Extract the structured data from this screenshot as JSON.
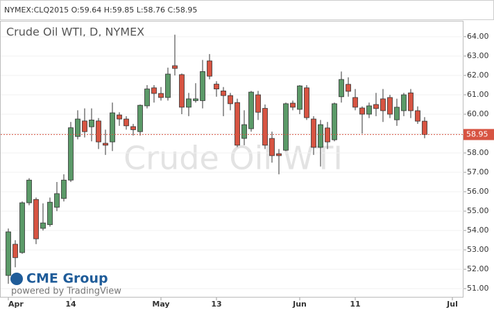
{
  "chart_data": {
    "type": "candlestick",
    "header": "NYMEX:CLQ2015 O:59.64 H:59.85 L:58.76 C:58.95",
    "title": "Crude Oil WTI, D, NYMEX",
    "watermark": "Crude Oil WTI",
    "logo": "CME Group",
    "logo_subtitle": "powered by TradingView",
    "up_color": "#5b9a68",
    "down_color": "#d75442",
    "categories": [
      "Apr",
      null,
      null,
      null,
      null,
      null,
      null,
      null,
      null,
      "14",
      null,
      null,
      null,
      null,
      null,
      null,
      null,
      null,
      null,
      null,
      null,
      null,
      "May",
      null,
      null,
      null,
      null,
      null,
      null,
      null,
      "13",
      null,
      null,
      null,
      null,
      null,
      null,
      null,
      null,
      null,
      null,
      null,
      "Jun",
      null,
      null,
      null,
      null,
      null,
      null,
      null,
      "11",
      null,
      null,
      null,
      null,
      null,
      null,
      null,
      null,
      null,
      null,
      null,
      null,
      null,
      "Jul"
    ],
    "open": [
      51.68,
      53.29,
      52.86,
      55.43,
      55.6,
      54.11,
      54.3,
      55.2,
      55.65,
      56.6,
      58.85,
      59.65,
      59.35,
      59.65,
      58.5,
      58.57,
      59.96,
      59.75,
      59.36,
      59.1,
      60.43,
      61.36,
      61.07,
      60.86,
      62.5,
      62.04,
      60.36,
      60.7,
      60.7,
      62.75,
      61.55,
      61.2,
      60.96,
      60.6,
      58.75,
      59.25,
      61.0,
      60.3,
      58.75,
      57.96,
      58.14,
      60.57,
      60.25,
      61.36,
      59.75,
      58.29,
      59.29,
      58.68,
      60.9,
      61.54,
      60.86,
      60.32,
      60.0,
      60.5,
      60.79,
      60.86,
      59.71,
      60.18,
      61.1,
      60.18,
      59.64,
      null,
      null,
      null,
      null
    ],
    "high": [
      54.1,
      53.5,
      55.5,
      56.7,
      55.7,
      55.4,
      55.7,
      56.5,
      56.9,
      59.6,
      60.2,
      60.3,
      60.3,
      59.8,
      59.2,
      60.6,
      60.1,
      59.9,
      59.5,
      60.5,
      61.5,
      61.5,
      61.4,
      62.4,
      64.1,
      62.1,
      61.1,
      61.6,
      62.8,
      63.1,
      61.7,
      61.4,
      61.1,
      60.8,
      60.2,
      61.2,
      61.2,
      60.5,
      59.1,
      58.2,
      60.6,
      60.7,
      61.5,
      61.5,
      59.9,
      59.7,
      59.6,
      60.6,
      62.2,
      61.9,
      61.3,
      60.4,
      60.6,
      61.1,
      61.3,
      61.0,
      60.8,
      61.1,
      61.3,
      60.4,
      59.85,
      null,
      null,
      null,
      null
    ],
    "low": [
      51.25,
      52.1,
      52.8,
      55.3,
      53.3,
      54.0,
      54.2,
      55.0,
      55.5,
      56.5,
      58.7,
      58.8,
      58.6,
      58.2,
      57.9,
      58.1,
      59.4,
      59.2,
      58.9,
      58.9,
      60.3,
      60.6,
      60.7,
      60.7,
      62.0,
      60.0,
      59.9,
      60.6,
      60.3,
      61.8,
      60.9,
      59.9,
      60.2,
      58.3,
      58.4,
      59.1,
      59.7,
      58.2,
      57.5,
      56.9,
      58.1,
      60.2,
      60.0,
      59.7,
      57.9,
      57.3,
      58.2,
      58.6,
      60.6,
      60.9,
      60.2,
      59.0,
      59.8,
      59.9,
      59.6,
      59.8,
      59.4,
      59.9,
      59.8,
      59.5,
      58.76,
      null,
      null,
      null,
      null
    ],
    "close": [
      53.93,
      52.6,
      55.43,
      56.6,
      53.57,
      54.39,
      55.46,
      55.9,
      56.6,
      59.3,
      59.75,
      59.1,
      59.7,
      58.57,
      58.4,
      60.07,
      59.75,
      59.4,
      59.2,
      60.46,
      61.3,
      61.07,
      60.86,
      62.07,
      62.36,
      60.36,
      60.79,
      60.79,
      62.2,
      61.96,
      61.3,
      60.96,
      60.54,
      58.4,
      59.46,
      61.14,
      60.1,
      58.4,
      57.86,
      57.86,
      60.54,
      60.36,
      61.46,
      59.82,
      58.29,
      59.46,
      58.57,
      60.54,
      61.79,
      61.18,
      60.36,
      60.0,
      60.43,
      60.29,
      60.18,
      60.0,
      60.36,
      61.0,
      60.18,
      59.64,
      58.95,
      null,
      null,
      null,
      null
    ],
    "last_price": 58.95,
    "ylim": [
      50.54,
      64.82
    ],
    "yticks": [
      {
        "value": 51,
        "label": "51.00"
      },
      {
        "value": 52,
        "label": "52.00"
      },
      {
        "value": 53,
        "label": "53.00"
      },
      {
        "value": 54,
        "label": "54.00"
      },
      {
        "value": 55,
        "label": "55.00"
      },
      {
        "value": 56,
        "label": "56.00"
      },
      {
        "value": 57,
        "label": "57.00"
      },
      {
        "value": 58,
        "label": "58.00"
      },
      {
        "value": 59,
        "label": "59.00"
      },
      {
        "value": 60,
        "label": "60.00"
      },
      {
        "value": 61,
        "label": "61.00"
      },
      {
        "value": 62,
        "label": "62.00"
      },
      {
        "value": 63,
        "label": "63.00"
      },
      {
        "value": 64,
        "label": "64.00"
      }
    ],
    "grid": true
  }
}
